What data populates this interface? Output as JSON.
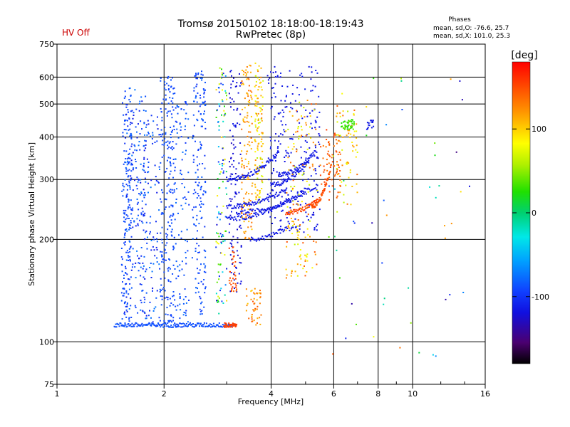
{
  "header": {
    "title": "Tromsø 20150102 18:18:00-18:19:43",
    "subtitle": "RwPretec (8p)",
    "status": "HV Off",
    "status_color": "#cc0000",
    "stats_title": "Phases",
    "stats_o": "mean, sd,O: -76.6, 25.7",
    "stats_x": "mean, sd,X: 101.0, 25.3"
  },
  "colorbar": {
    "label": "[deg]",
    "range": [
      -180,
      180
    ],
    "ticks": [
      {
        "value": 100,
        "label": "100"
      },
      {
        "value": 0,
        "label": "0"
      },
      {
        "value": -100,
        "label": "-100"
      }
    ]
  },
  "chart_data": {
    "type": "scatter",
    "title": "Tromsø 20150102 18:18:00-18:19:43",
    "subtitle": "RwPretec (8p)",
    "xlabel": "Frequency [MHz]",
    "ylabel": "Stationary phase Virtual Height [km]",
    "x_scale": "log",
    "y_scale": "log",
    "xlim": [
      1,
      16
    ],
    "ylim": [
      75,
      750
    ],
    "x_ticks": [
      {
        "value": 1,
        "label": "1"
      },
      {
        "value": 2,
        "label": "2"
      },
      {
        "value": 4,
        "label": "4"
      },
      {
        "value": 6,
        "label": "6"
      },
      {
        "value": 8,
        "label": "8"
      },
      {
        "value": 10,
        "label": "10"
      },
      {
        "value": 16,
        "label": "16"
      }
    ],
    "x_minor_ticks": [
      3,
      5,
      7,
      9,
      12,
      14
    ],
    "y_ticks": [
      {
        "value": 75,
        "label": "75"
      },
      {
        "value": 100,
        "label": "100"
      },
      {
        "value": 200,
        "label": "200"
      },
      {
        "value": 300,
        "label": "300"
      },
      {
        "value": 400,
        "label": "400"
      },
      {
        "value": 500,
        "label": "500"
      },
      {
        "value": 600,
        "label": "600"
      },
      {
        "value": 750,
        "label": "750"
      }
    ],
    "grid": true,
    "color_variable": "phase [deg]",
    "color_range": [
      -180,
      180
    ],
    "point_groups": [
      {
        "kind": "column",
        "x": [
          1.52,
          1.62
        ],
        "h": [
          112,
          560
        ],
        "count": 150,
        "phase": [
          -95,
          -85
        ]
      },
      {
        "kind": "column",
        "x": [
          1.55,
          1.78
        ],
        "h": [
          120,
          560
        ],
        "count": 200,
        "phase": [
          -115,
          -70
        ]
      },
      {
        "kind": "column",
        "x": [
          1.75,
          1.95
        ],
        "h": [
          112,
          470
        ],
        "count": 110,
        "phase": [
          -115,
          -70
        ]
      },
      {
        "kind": "column",
        "x": [
          1.95,
          2.15
        ],
        "h": [
          112,
          610
        ],
        "count": 230,
        "phase": [
          -95,
          -85
        ]
      },
      {
        "kind": "column",
        "x": [
          2.15,
          2.35
        ],
        "h": [
          112,
          520
        ],
        "count": 100,
        "phase": [
          -100,
          -75
        ]
      },
      {
        "kind": "column",
        "x": [
          2.4,
          2.62
        ],
        "h": [
          120,
          640
        ],
        "count": 170,
        "phase": [
          -100,
          -80
        ]
      },
      {
        "kind": "trace",
        "x": [
          1.45,
          3.15
        ],
        "h": [
          112,
          112
        ],
        "count": 170,
        "phase": [
          -92,
          -85
        ]
      },
      {
        "kind": "column",
        "x": [
          2.8,
          3.0
        ],
        "h": [
          120,
          640
        ],
        "count": 120,
        "phase": [
          -130,
          100
        ]
      },
      {
        "kind": "column",
        "x": [
          3.05,
          3.3
        ],
        "h": [
          140,
          650
        ],
        "count": 110,
        "phase": [
          -130,
          -110
        ]
      },
      {
        "kind": "column",
        "x": [
          3.3,
          3.55
        ],
        "h": [
          200,
          650
        ],
        "count": 130,
        "phase": [
          100,
          140
        ]
      },
      {
        "kind": "column",
        "x": [
          3.6,
          3.8
        ],
        "h": [
          250,
          660
        ],
        "count": 120,
        "phase": [
          60,
          130
        ]
      },
      {
        "kind": "trace",
        "x": [
          2.95,
          3.2
        ],
        "h": [
          112,
          112
        ],
        "count": 35,
        "phase": [
          150,
          160
        ]
      },
      {
        "kind": "column",
        "x": [
          3.05,
          3.2
        ],
        "h": [
          140,
          190
        ],
        "count": 35,
        "phase": [
          140,
          160
        ]
      },
      {
        "kind": "column",
        "x": [
          3.4,
          3.75
        ],
        "h": [
          112,
          145
        ],
        "count": 45,
        "phase": [
          100,
          150
        ]
      },
      {
        "kind": "trace",
        "x": [
          3.0,
          4.2
        ],
        "h": [
          300,
          360
        ],
        "count": 70,
        "phase": [
          -120,
          -110
        ]
      },
      {
        "kind": "trace",
        "x": [
          3.0,
          4.4
        ],
        "h": [
          250,
          280
        ],
        "count": 70,
        "phase": [
          -120,
          -110
        ]
      },
      {
        "kind": "trace",
        "x": [
          3.0,
          5.0
        ],
        "h": [
          230,
          280
        ],
        "count": 80,
        "phase": [
          -120,
          -110
        ]
      },
      {
        "kind": "trace",
        "x": [
          3.2,
          5.4
        ],
        "h": [
          240,
          290
        ],
        "count": 80,
        "phase": [
          -120,
          -110
        ]
      },
      {
        "kind": "trace",
        "x": [
          3.5,
          4.5
        ],
        "h": [
          200,
          220
        ],
        "count": 40,
        "phase": [
          -120,
          -110
        ]
      },
      {
        "kind": "trace",
        "x": [
          4.0,
          5.1
        ],
        "h": [
          290,
          340
        ],
        "count": 50,
        "phase": [
          -120,
          -110
        ]
      },
      {
        "kind": "trace",
        "x": [
          4.2,
          5.3
        ],
        "h": [
          310,
          360
        ],
        "count": 50,
        "phase": [
          -120,
          -110
        ]
      },
      {
        "kind": "column",
        "x": [
          3.9,
          5.5
        ],
        "h": [
          210,
          650
        ],
        "count": 240,
        "phase": [
          -120,
          -110
        ]
      },
      {
        "kind": "column",
        "x": [
          4.4,
          5.4
        ],
        "h": [
          150,
          520
        ],
        "count": 140,
        "phase": [
          60,
          150
        ]
      },
      {
        "kind": "trace",
        "x": [
          4.4,
          5.4
        ],
        "h": [
          240,
          260
        ],
        "count": 50,
        "phase": [
          150,
          160
        ]
      },
      {
        "kind": "trace",
        "x": [
          5.2,
          5.9
        ],
        "h": [
          250,
          330
        ],
        "count": 60,
        "phase": [
          140,
          160
        ]
      },
      {
        "kind": "column",
        "x": [
          5.5,
          6.3
        ],
        "h": [
          260,
          420
        ],
        "count": 70,
        "phase": [
          130,
          160
        ]
      },
      {
        "kind": "column",
        "x": [
          6.1,
          7.0
        ],
        "h": [
          250,
          480
        ],
        "count": 60,
        "phase": [
          60,
          140
        ]
      },
      {
        "kind": "column",
        "x": [
          6.3,
          6.85
        ],
        "h": [
          420,
          450
        ],
        "count": 45,
        "phase": [
          20,
          40
        ]
      },
      {
        "kind": "column",
        "x": [
          7.4,
          7.8
        ],
        "h": [
          420,
          450
        ],
        "count": 15,
        "phase": [
          -120,
          -110
        ]
      },
      {
        "kind": "column",
        "x": [
          5.8,
          14.5
        ],
        "h": [
          90,
          620
        ],
        "count": 55,
        "phase": [
          -150,
          150
        ]
      }
    ]
  }
}
